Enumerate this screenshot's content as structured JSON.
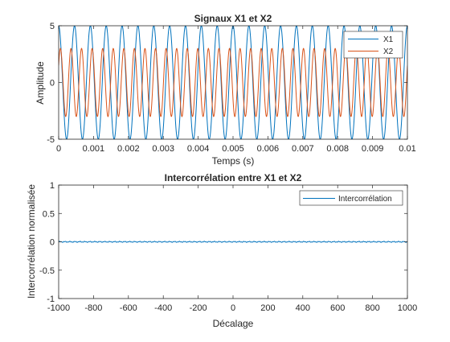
{
  "chart_data": [
    {
      "type": "line",
      "title": "Signaux X1 et X2",
      "xlabel": "Temps (s)",
      "ylabel": "Amplitude",
      "xlim": [
        0,
        0.01
      ],
      "ylim": [
        -5,
        5
      ],
      "xticks": [
        "0",
        "0.001",
        "0.002",
        "0.003",
        "0.004",
        "0.005",
        "0.006",
        "0.007",
        "0.008",
        "0.009",
        "0.01"
      ],
      "yticks": [
        "-5",
        "0",
        "5"
      ],
      "grid": false,
      "legend_location": "top-right",
      "series": [
        {
          "name": "X1",
          "color": "#0072BD",
          "amplitude": 5,
          "frequency_hz": 2200,
          "phase_deg": 90
        },
        {
          "name": "X2",
          "color": "#D95319",
          "amplitude": 3,
          "frequency_hz": 3300,
          "phase_deg": 30
        }
      ]
    },
    {
      "type": "line",
      "title": "Intercorrélation entre X1 et X2",
      "xlabel": "Décalage",
      "ylabel": "Intercorrélation normalisée",
      "xlim": [
        -1000,
        1000
      ],
      "ylim": [
        -1,
        1
      ],
      "xticks": [
        "-1000",
        "-800",
        "-600",
        "-400",
        "-200",
        "0",
        "200",
        "400",
        "600",
        "800",
        "1000"
      ],
      "yticks": [
        "-1",
        "-0.5",
        "0",
        "0.5",
        "1"
      ],
      "grid": false,
      "legend_location": "top-right",
      "series": [
        {
          "name": "Intercorrélation",
          "color": "#0072BD",
          "center_value": 0,
          "ripple_amplitude": 0.01
        }
      ]
    }
  ]
}
